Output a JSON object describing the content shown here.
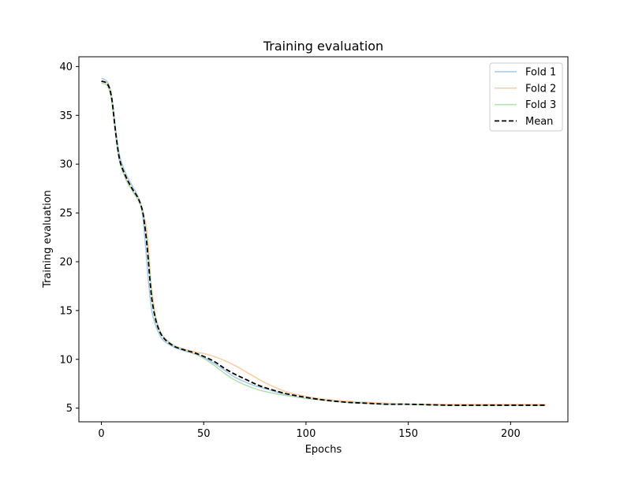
{
  "chart_data": {
    "type": "line",
    "title": "Training evaluation",
    "xlabel": "Epochs",
    "ylabel": "Training evaluation",
    "xlim": [
      -11,
      228
    ],
    "ylim": [
      3.6,
      41
    ],
    "xticks": [
      0,
      50,
      100,
      150,
      200
    ],
    "yticks": [
      5,
      10,
      15,
      20,
      25,
      30,
      35,
      40
    ],
    "grid": false,
    "legend_position": "top-right",
    "series": [
      {
        "name": "Fold 1",
        "color": "#a6cae6",
        "dashed": false,
        "points": [
          [
            0,
            38.8
          ],
          [
            3,
            38.4
          ],
          [
            5,
            37.0
          ],
          [
            7,
            33.5
          ],
          [
            9,
            30.8
          ],
          [
            12,
            29.0
          ],
          [
            15,
            27.8
          ],
          [
            18,
            26.6
          ],
          [
            20,
            25.0
          ],
          [
            21,
            23.0
          ],
          [
            22,
            20.5
          ],
          [
            23,
            18.0
          ],
          [
            24,
            16.0
          ],
          [
            25,
            14.6
          ],
          [
            27,
            13.2
          ],
          [
            30,
            12.0
          ],
          [
            35,
            11.3
          ],
          [
            40,
            10.9
          ],
          [
            45,
            10.6
          ],
          [
            50,
            10.2
          ],
          [
            55,
            9.6
          ],
          [
            60,
            8.9
          ],
          [
            65,
            8.2
          ],
          [
            70,
            7.7
          ],
          [
            75,
            7.3
          ],
          [
            80,
            7.0
          ],
          [
            90,
            6.4
          ],
          [
            100,
            6.0
          ],
          [
            110,
            5.8
          ],
          [
            120,
            5.6
          ],
          [
            130,
            5.5
          ],
          [
            140,
            5.4
          ],
          [
            150,
            5.4
          ],
          [
            170,
            5.3
          ],
          [
            190,
            5.3
          ],
          [
            210,
            5.3
          ],
          [
            217,
            5.3
          ]
        ]
      },
      {
        "name": "Fold 2",
        "color": "#fdcba4",
        "dashed": false,
        "points": [
          [
            0,
            38.5
          ],
          [
            3,
            38.2
          ],
          [
            5,
            36.8
          ],
          [
            7,
            33.0
          ],
          [
            9,
            30.2
          ],
          [
            12,
            28.6
          ],
          [
            15,
            27.4
          ],
          [
            18,
            26.4
          ],
          [
            20,
            25.4
          ],
          [
            21,
            24.5
          ],
          [
            22,
            23.5
          ],
          [
            23,
            21.5
          ],
          [
            24,
            18.5
          ],
          [
            25,
            16.5
          ],
          [
            27,
            14.0
          ],
          [
            30,
            12.4
          ],
          [
            35,
            11.5
          ],
          [
            40,
            11.1
          ],
          [
            45,
            10.8
          ],
          [
            50,
            10.6
          ],
          [
            55,
            10.3
          ],
          [
            60,
            9.9
          ],
          [
            65,
            9.4
          ],
          [
            70,
            8.8
          ],
          [
            75,
            8.2
          ],
          [
            80,
            7.6
          ],
          [
            90,
            6.7
          ],
          [
            100,
            6.2
          ],
          [
            110,
            5.9
          ],
          [
            120,
            5.7
          ],
          [
            130,
            5.6
          ],
          [
            140,
            5.5
          ],
          [
            150,
            5.4
          ],
          [
            170,
            5.4
          ],
          [
            190,
            5.4
          ],
          [
            210,
            5.4
          ],
          [
            217,
            5.4
          ]
        ]
      },
      {
        "name": "Fold 3",
        "color": "#b2deb0",
        "dashed": false,
        "points": [
          [
            0,
            38.3
          ],
          [
            3,
            38.0
          ],
          [
            5,
            36.5
          ],
          [
            7,
            33.0
          ],
          [
            9,
            30.2
          ],
          [
            12,
            28.4
          ],
          [
            15,
            27.3
          ],
          [
            18,
            26.3
          ],
          [
            20,
            25.3
          ],
          [
            21,
            24.2
          ],
          [
            22,
            22.8
          ],
          [
            23,
            20.5
          ],
          [
            24,
            18.0
          ],
          [
            25,
            16.0
          ],
          [
            27,
            13.8
          ],
          [
            30,
            12.4
          ],
          [
            35,
            11.5
          ],
          [
            40,
            11.0
          ],
          [
            45,
            10.6
          ],
          [
            50,
            10.1
          ],
          [
            55,
            9.4
          ],
          [
            60,
            8.6
          ],
          [
            65,
            7.9
          ],
          [
            70,
            7.4
          ],
          [
            75,
            7.0
          ],
          [
            80,
            6.7
          ],
          [
            90,
            6.3
          ],
          [
            100,
            6.0
          ],
          [
            110,
            5.8
          ],
          [
            120,
            5.6
          ],
          [
            130,
            5.5
          ],
          [
            140,
            5.4
          ],
          [
            150,
            5.4
          ],
          [
            170,
            5.3
          ],
          [
            190,
            5.3
          ],
          [
            210,
            5.3
          ],
          [
            217,
            5.3
          ]
        ]
      },
      {
        "name": "Mean",
        "color": "#000000",
        "dashed": true,
        "points": [
          [
            0,
            38.5
          ],
          [
            3,
            38.2
          ],
          [
            5,
            36.8
          ],
          [
            7,
            33.2
          ],
          [
            9,
            30.4
          ],
          [
            12,
            28.7
          ],
          [
            15,
            27.5
          ],
          [
            18,
            26.5
          ],
          [
            20,
            25.3
          ],
          [
            21,
            24.0
          ],
          [
            22,
            22.3
          ],
          [
            23,
            20.0
          ],
          [
            24,
            17.5
          ],
          [
            25,
            15.7
          ],
          [
            27,
            13.7
          ],
          [
            30,
            12.3
          ],
          [
            35,
            11.4
          ],
          [
            40,
            11.0
          ],
          [
            45,
            10.7
          ],
          [
            50,
            10.3
          ],
          [
            55,
            9.8
          ],
          [
            60,
            9.1
          ],
          [
            65,
            8.5
          ],
          [
            70,
            8.0
          ],
          [
            75,
            7.5
          ],
          [
            80,
            7.1
          ],
          [
            90,
            6.5
          ],
          [
            100,
            6.1
          ],
          [
            110,
            5.8
          ],
          [
            120,
            5.6
          ],
          [
            130,
            5.5
          ],
          [
            140,
            5.4
          ],
          [
            150,
            5.4
          ],
          [
            170,
            5.3
          ],
          [
            190,
            5.3
          ],
          [
            210,
            5.3
          ],
          [
            217,
            5.3
          ]
        ]
      }
    ]
  }
}
